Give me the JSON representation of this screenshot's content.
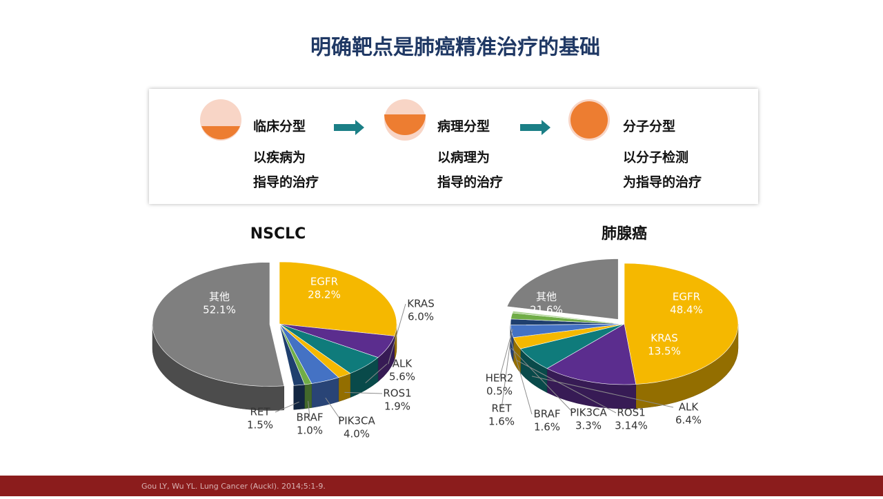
{
  "title": "明确靶点是肺癌精准治疗的基础",
  "stages": [
    {
      "label": "临床分型",
      "desc": [
        "以疾病为",
        "指导的治疗"
      ]
    },
    {
      "label": "病理分型",
      "desc": [
        "以病理为",
        "指导的治疗"
      ]
    },
    {
      "label": "分子分型",
      "desc": [
        "以分子检测",
        "为指导的治疗"
      ]
    }
  ],
  "citation": "Gou LY, Wu YL. Lung Cancer (Auckl). 2014;5:1-9.",
  "chart_data": [
    {
      "type": "pie",
      "title": "NSCLC",
      "categories": [
        "EGFR",
        "KRAS",
        "ALK",
        "ROS1",
        "PIK3CA",
        "BRAF",
        "RET",
        "其他"
      ],
      "values": [
        28.2,
        6.0,
        5.6,
        1.9,
        4.0,
        1.0,
        1.5,
        52.1
      ],
      "value_labels": [
        "28.2%",
        "6.0%",
        "5.6%",
        "1.9%",
        "4.0%",
        "1.0%",
        "1.5%",
        "52.1%"
      ],
      "colors": [
        "#f5b800",
        "#5b2d8e",
        "#0f7b7b",
        "#f5b800",
        "#4472c4",
        "#70ad47",
        "#1f3f6e",
        "#7f7f7f"
      ]
    },
    {
      "type": "pie",
      "title": "肺腺癌",
      "categories": [
        "EGFR",
        "KRAS",
        "ALK",
        "ROS1",
        "PIK3CA",
        "BRAF",
        "RET",
        "HER2",
        "其他"
      ],
      "values": [
        48.4,
        13.5,
        6.4,
        3.14,
        3.3,
        1.6,
        1.6,
        0.5,
        21.6
      ],
      "value_labels": [
        "48.4%",
        "13.5%",
        "6.4%",
        "3.14%",
        "3.3%",
        "1.6%",
        "1.6%",
        "0.5%",
        "21.6%"
      ],
      "colors": [
        "#f5b800",
        "#5b2d8e",
        "#0f7b7b",
        "#f5b800",
        "#4472c4",
        "#1f3f6e",
        "#70ad47",
        "#a9d18e",
        "#7f7f7f"
      ]
    }
  ]
}
